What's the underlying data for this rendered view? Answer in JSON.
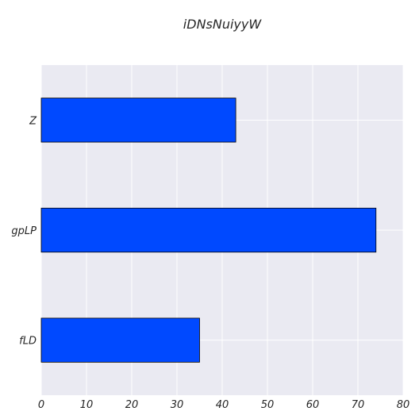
{
  "chart_data": {
    "type": "bar",
    "orientation": "horizontal",
    "title": "iDNsNuiyyW",
    "xlabel": "",
    "ylabel": "",
    "categories": [
      "Z",
      "gpLP",
      "fLD"
    ],
    "values": [
      43,
      74,
      35
    ],
    "xlim": [
      0,
      80
    ],
    "xticks": [
      0,
      10,
      20,
      30,
      40,
      50,
      60,
      70,
      80
    ],
    "grid": true,
    "legend": "none",
    "colors": {
      "bar": "#0049ff",
      "bar_edge": "#000000",
      "plot_bg": "#eaeaf2",
      "grid": "#ffffff"
    }
  }
}
